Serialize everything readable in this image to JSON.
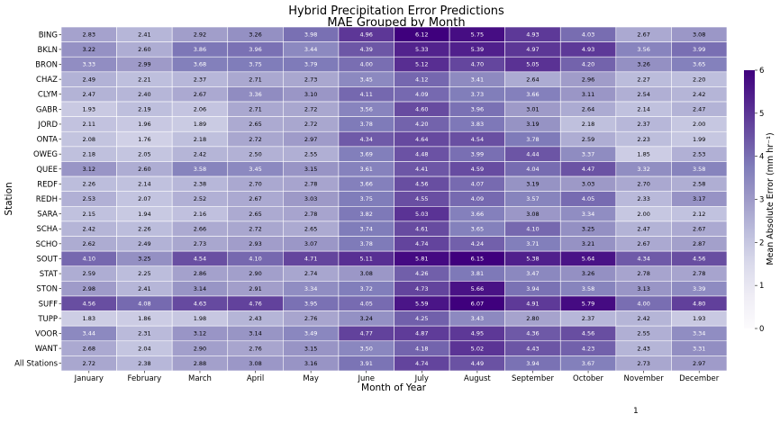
{
  "chart_data": {
    "type": "heatmap",
    "title": "Hybrid Precipitation Error Predictions",
    "subtitle": "MAE Grouped by Month",
    "xlabel": "Month of Year",
    "ylabel": "Station",
    "colorbar_label": "Mean Absolute Error (mm hr⁻¹)",
    "colorbar_range": [
      0,
      6
    ],
    "colorbar_ticks": [
      "0",
      "1",
      "2",
      "3",
      "4",
      "5",
      "6"
    ],
    "colormap": "Purples",
    "columns": [
      "January",
      "February",
      "March",
      "April",
      "May",
      "June",
      "July",
      "August",
      "September",
      "October",
      "November",
      "December"
    ],
    "rows": [
      "BING",
      "BKLN",
      "BRON",
      "CHAZ",
      "CLYM",
      "GABR",
      "JORD",
      "ONTA",
      "OWEG",
      "QUEE",
      "REDF",
      "REDH",
      "SARA",
      "SCHA",
      "SCHO",
      "SOUT",
      "STAT",
      "STON",
      "SUFF",
      "TUPP",
      "VOOR",
      "WANT",
      "All Stations"
    ],
    "values": [
      [
        2.83,
        2.41,
        2.92,
        3.26,
        3.98,
        4.96,
        6.12,
        5.75,
        4.93,
        4.03,
        2.67,
        3.08
      ],
      [
        3.22,
        2.6,
        3.86,
        3.96,
        3.44,
        4.39,
        5.33,
        5.39,
        4.97,
        4.93,
        3.56,
        3.99
      ],
      [
        3.33,
        2.99,
        3.68,
        3.75,
        3.79,
        4.0,
        5.12,
        4.7,
        5.05,
        4.2,
        3.26,
        3.65
      ],
      [
        2.49,
        2.21,
        2.37,
        2.71,
        2.73,
        3.45,
        4.12,
        3.41,
        2.64,
        2.96,
        2.27,
        2.2
      ],
      [
        2.47,
        2.4,
        2.67,
        3.36,
        3.1,
        4.11,
        4.09,
        3.73,
        3.66,
        3.11,
        2.54,
        2.42
      ],
      [
        1.93,
        2.19,
        2.06,
        2.71,
        2.72,
        3.56,
        4.6,
        3.96,
        3.01,
        2.64,
        2.14,
        2.47
      ],
      [
        2.11,
        1.96,
        1.89,
        2.65,
        2.72,
        3.78,
        4.2,
        3.83,
        3.19,
        2.18,
        2.37,
        2.0
      ],
      [
        2.08,
        1.76,
        2.18,
        2.72,
        2.97,
        4.34,
        4.64,
        4.54,
        3.78,
        2.59,
        2.23,
        1.99
      ],
      [
        2.18,
        2.05,
        2.42,
        2.5,
        2.55,
        3.69,
        4.48,
        3.99,
        4.44,
        3.37,
        1.85,
        2.53
      ],
      [
        3.12,
        2.6,
        3.58,
        3.45,
        3.15,
        3.61,
        4.41,
        4.59,
        4.04,
        4.47,
        3.32,
        3.58
      ],
      [
        2.26,
        2.14,
        2.38,
        2.7,
        2.78,
        3.66,
        4.56,
        4.07,
        3.19,
        3.03,
        2.7,
        2.58
      ],
      [
        2.53,
        2.07,
        2.52,
        2.67,
        3.03,
        3.75,
        4.55,
        4.09,
        3.57,
        4.05,
        2.33,
        3.17
      ],
      [
        2.15,
        1.94,
        2.16,
        2.65,
        2.78,
        3.82,
        5.03,
        3.66,
        3.08,
        3.34,
        2.0,
        2.12
      ],
      [
        2.42,
        2.26,
        2.66,
        2.72,
        2.65,
        3.74,
        4.61,
        3.65,
        4.1,
        3.25,
        2.47,
        2.67
      ],
      [
        2.62,
        2.49,
        2.73,
        2.93,
        3.07,
        3.78,
        4.74,
        4.24,
        3.71,
        3.21,
        2.67,
        2.87
      ],
      [
        4.1,
        3.25,
        4.54,
        4.1,
        4.71,
        5.11,
        5.81,
        6.15,
        5.38,
        5.64,
        4.34,
        4.56
      ],
      [
        2.59,
        2.25,
        2.86,
        2.9,
        2.74,
        3.08,
        4.26,
        3.81,
        3.47,
        3.26,
        2.78,
        2.78
      ],
      [
        2.98,
        2.41,
        3.14,
        2.91,
        3.34,
        3.72,
        4.73,
        5.66,
        3.94,
        3.58,
        3.13,
        3.39
      ],
      [
        4.56,
        4.08,
        4.63,
        4.76,
        3.95,
        4.05,
        5.59,
        6.07,
        4.91,
        5.79,
        4.0,
        4.8
      ],
      [
        1.83,
        1.86,
        1.98,
        2.43,
        2.76,
        3.24,
        4.25,
        3.43,
        2.8,
        2.37,
        2.42,
        1.93
      ],
      [
        3.44,
        2.31,
        3.12,
        3.14,
        3.49,
        4.77,
        4.87,
        4.95,
        4.36,
        4.56,
        2.55,
        3.34
      ],
      [
        2.68,
        2.04,
        2.9,
        2.76,
        3.15,
        3.5,
        4.18,
        5.02,
        4.43,
        4.23,
        2.43,
        3.31
      ],
      [
        2.72,
        2.38,
        2.88,
        3.08,
        3.16,
        3.91,
        4.74,
        4.49,
        3.94,
        3.67,
        2.73,
        2.97
      ]
    ],
    "stray_mark": "1"
  }
}
